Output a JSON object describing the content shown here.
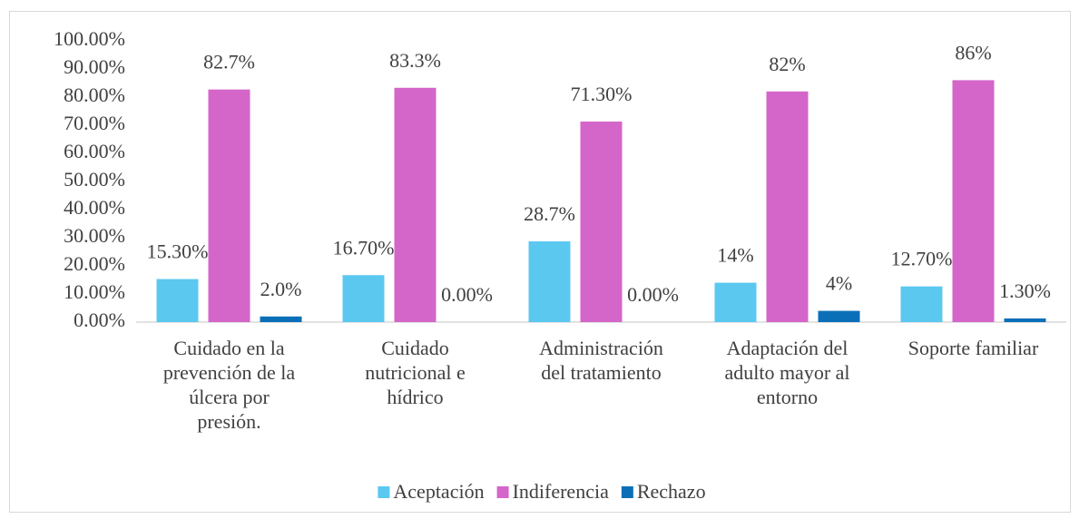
{
  "chart_data": {
    "type": "bar",
    "categories": [
      "Cuidado en la prevención de la úlcera por presión.",
      "Cuidado nutricional e hídrico",
      "Administración del tratamiento",
      "Adaptación del adulto mayor al entorno",
      "Soporte familiar"
    ],
    "series": [
      {
        "name": "Aceptación",
        "color": "#5bc8f0",
        "values": [
          15.3,
          16.7,
          28.7,
          14,
          12.7
        ],
        "value_labels": [
          "15.30%",
          "16.70%",
          "28.7%",
          "14%",
          "12.70%"
        ]
      },
      {
        "name": "Indiferencia",
        "color": "#d466c9",
        "values": [
          82.7,
          83.3,
          71.3,
          82,
          86
        ],
        "value_labels": [
          "82.7%",
          "83.3%",
          "71.30%",
          "82%",
          "86%"
        ]
      },
      {
        "name": "Rechazo",
        "color": "#0b6fb8",
        "values": [
          2,
          0,
          0,
          4,
          1.3
        ],
        "value_labels": [
          "2.0%",
          "0.00%",
          "0.00%",
          "4%",
          "1.30%"
        ]
      }
    ],
    "ylim": [
      0,
      100
    ],
    "yticks": [
      {
        "value": 0,
        "label": "0.00%"
      },
      {
        "value": 10,
        "label": "10.00%"
      },
      {
        "value": 20,
        "label": "20.00%"
      },
      {
        "value": 30,
        "label": "30.00%"
      },
      {
        "value": 40,
        "label": "40.00%"
      },
      {
        "value": 50,
        "label": "50.00%"
      },
      {
        "value": 60,
        "label": "60.00%"
      },
      {
        "value": 70,
        "label": "70.00%"
      },
      {
        "value": 80,
        "label": "80.00%"
      },
      {
        "value": 90,
        "label": "90.00%"
      },
      {
        "value": 100,
        "label": "100.00%"
      }
    ],
    "legend": "bottom"
  }
}
